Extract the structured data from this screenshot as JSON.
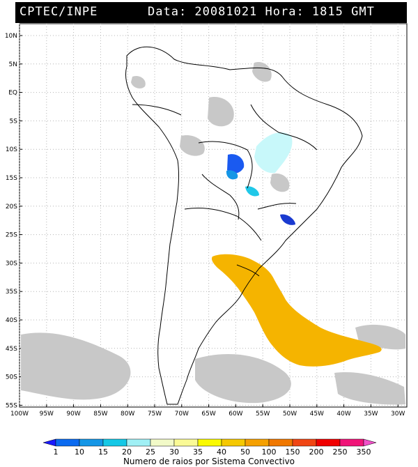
{
  "header": {
    "left": "CPTEC/INPE",
    "right": "Data: 20081021 Hora: 1815 GMT"
  },
  "lat_labels": [
    "10N",
    "5N",
    "EQ",
    "5S",
    "10S",
    "15S",
    "20S",
    "25S",
    "30S",
    "35S",
    "40S",
    "45S",
    "50S",
    "55S"
  ],
  "lon_labels": [
    "100W",
    "95W",
    "90W",
    "85W",
    "80W",
    "75W",
    "70W",
    "65W",
    "60W",
    "55W",
    "50W",
    "45W",
    "40W",
    "35W",
    "30W"
  ],
  "colorbar": {
    "title": "Numero de raios por Sistema Convectivo",
    "ticks": [
      "1",
      "10",
      "15",
      "20",
      "25",
      "30",
      "35",
      "40",
      "50",
      "100",
      "150",
      "200",
      "250",
      "350"
    ],
    "colors": [
      "#1a1aff",
      "#0a6af0",
      "#1496e6",
      "#14c8e6",
      "#a0f0f5",
      "#f2fac8",
      "#fafa96",
      "#fafa00",
      "#f5c800",
      "#f5a000",
      "#f07800",
      "#f04614",
      "#f00000",
      "#f01478",
      "#f050c8"
    ]
  },
  "legend_colors": {
    "cloud": "#c8c8c8",
    "border": "#000000",
    "grid": "#b4b4b4"
  }
}
